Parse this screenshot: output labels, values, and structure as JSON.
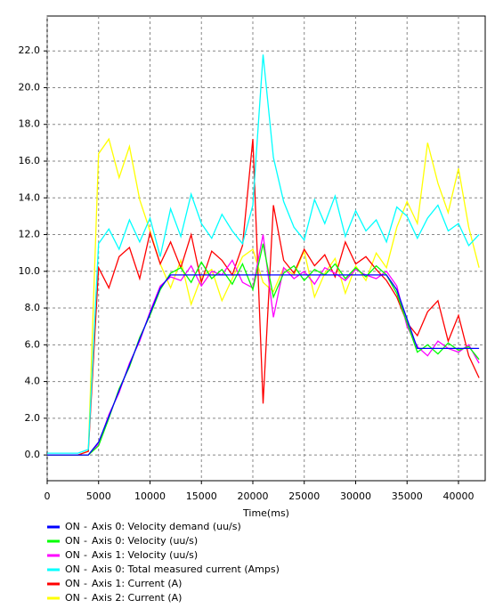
{
  "chart_data": {
    "type": "line",
    "x_label": "Time(ms)",
    "xlim": [
      0,
      42600
    ],
    "ylim": [
      -1.4,
      23.9
    ],
    "xticks": [
      0,
      5000,
      10000,
      15000,
      20000,
      25000,
      30000,
      35000,
      40000
    ],
    "yticks": [
      {
        "value": 0,
        "label": "0.0"
      },
      {
        "value": 2,
        "label": "2.0"
      },
      {
        "value": 4,
        "label": "4.0"
      },
      {
        "value": 6,
        "label": "6.0"
      },
      {
        "value": 8,
        "label": "8.0"
      },
      {
        "value": 10,
        "label": "10.0"
      },
      {
        "value": 12,
        "label": "12.0"
      },
      {
        "value": 14,
        "label": "14.0"
      },
      {
        "value": 16,
        "label": "16.0"
      },
      {
        "value": 18,
        "label": "18.0"
      },
      {
        "value": 20,
        "label": "20.0"
      },
      {
        "value": 22,
        "label": "22.0"
      }
    ],
    "grid": true,
    "x": [
      0,
      1000,
      2000,
      3000,
      4000,
      5000,
      6000,
      7000,
      8000,
      9000,
      10000,
      11000,
      12000,
      13000,
      14000,
      15000,
      16000,
      17000,
      18000,
      19000,
      20000,
      21000,
      22000,
      23000,
      24000,
      25000,
      26000,
      27000,
      28000,
      29000,
      30000,
      31000,
      32000,
      33000,
      34000,
      35000,
      36000,
      37000,
      38000,
      39000,
      40000,
      41000,
      42000
    ],
    "series": [
      {
        "state": "ON",
        "name": "Axis 0: Velocity demand (uu/s)",
        "color": "#0000ff",
        "values": [
          0,
          0,
          0,
          0,
          0,
          0.7,
          2.1,
          3.5,
          4.9,
          6.3,
          7.7,
          9.1,
          9.8,
          9.8,
          9.8,
          9.8,
          9.8,
          9.8,
          9.8,
          9.8,
          9.8,
          9.8,
          9.8,
          9.8,
          9.8,
          9.8,
          9.8,
          9.8,
          9.8,
          9.8,
          9.8,
          9.8,
          9.8,
          9.8,
          9.0,
          7.4,
          5.8,
          5.8,
          5.8,
          5.8,
          5.8,
          5.8,
          5.8
        ]
      },
      {
        "state": "ON",
        "name": "Axis 0: Velocity (uu/s)",
        "color": "#00ff00",
        "values": [
          0,
          0,
          0,
          0,
          0,
          0.5,
          2.0,
          3.6,
          4.8,
          6.4,
          7.6,
          9.0,
          9.9,
          10.2,
          9.4,
          10.5,
          9.6,
          10.1,
          9.3,
          10.4,
          9.0,
          11.5,
          8.6,
          9.9,
          10.3,
          9.5,
          10.1,
          9.8,
          10.4,
          9.6,
          10.2,
          9.7,
          10.3,
          9.8,
          8.8,
          7.2,
          5.6,
          6.0,
          5.5,
          6.1,
          5.7,
          5.9,
          5.2
        ]
      },
      {
        "state": "ON",
        "name": "Axis 1: Velocity (uu/s)",
        "color": "#ff00ff",
        "values": [
          0,
          0,
          0,
          0,
          0,
          0.6,
          2.2,
          3.4,
          5.0,
          6.2,
          7.8,
          9.2,
          9.7,
          9.5,
          10.3,
          9.2,
          10.0,
          9.8,
          10.6,
          9.4,
          9.1,
          12.0,
          7.5,
          10.2,
          9.6,
          10.0,
          9.3,
          10.2,
          9.9,
          9.5,
          10.1,
          9.8,
          9.6,
          10.0,
          9.2,
          7.0,
          5.9,
          5.4,
          6.2,
          5.8,
          5.6,
          6.0,
          5.0
        ]
      },
      {
        "state": "ON",
        "name": "Axis 0: Total measured current (Amps)",
        "color": "#00ffff",
        "values": [
          0.1,
          0.1,
          0.1,
          0.1,
          0.3,
          11.5,
          12.3,
          11.2,
          12.8,
          11.6,
          12.9,
          10.8,
          13.4,
          11.9,
          14.2,
          12.6,
          11.8,
          13.1,
          12.2,
          11.5,
          13.6,
          21.8,
          16.2,
          13.8,
          12.4,
          11.7,
          13.9,
          12.6,
          14.1,
          11.9,
          13.3,
          12.2,
          12.8,
          11.6,
          13.5,
          13.0,
          11.8,
          12.9,
          13.6,
          12.2,
          12.6,
          11.4,
          12.0
        ]
      },
      {
        "state": "ON",
        "name": "Axis 1: Current (A)",
        "color": "#ff0000",
        "values": [
          0,
          0,
          0,
          0,
          0.2,
          10.2,
          9.1,
          10.8,
          11.3,
          9.6,
          12.1,
          10.4,
          11.6,
          10.2,
          12.0,
          9.4,
          11.1,
          10.6,
          9.8,
          11.4,
          17.2,
          2.8,
          13.6,
          10.6,
          9.9,
          11.2,
          10.3,
          10.9,
          9.7,
          11.6,
          10.4,
          10.8,
          10.1,
          9.5,
          8.6,
          7.2,
          6.5,
          7.8,
          8.4,
          6.2,
          7.6,
          5.4,
          4.2
        ]
      },
      {
        "state": "ON",
        "name": "Axis 2: Current (A)",
        "color": "#ffff00",
        "values": [
          0,
          0,
          0,
          0,
          0.2,
          16.4,
          17.2,
          15.1,
          16.8,
          13.9,
          12.2,
          10.4,
          9.1,
          10.6,
          8.2,
          9.7,
          10.1,
          8.4,
          9.6,
          10.8,
          11.2,
          9.4,
          8.9,
          10.2,
          9.8,
          11.1,
          8.6,
          9.9,
          10.7,
          8.8,
          10.3,
          9.5,
          11.0,
          10.2,
          12.4,
          13.8,
          12.6,
          17.0,
          14.8,
          13.2,
          15.6,
          12.4,
          10.2
        ]
      }
    ]
  }
}
